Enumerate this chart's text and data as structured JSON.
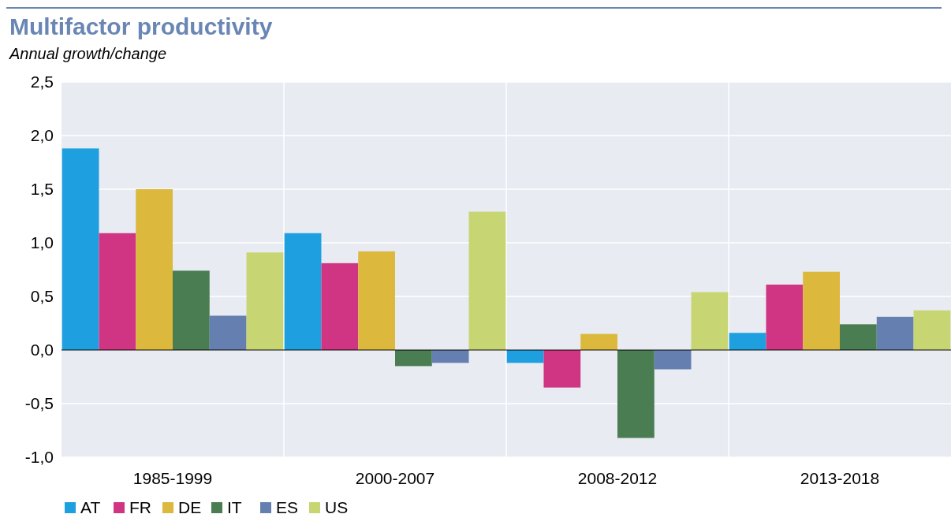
{
  "chart_data": {
    "type": "bar",
    "title": "Multifactor productivity",
    "subtitle": "Annual growth/change",
    "categories": [
      "1985-1999",
      "2000-2007",
      "2008-2012",
      "2013-2018"
    ],
    "series": [
      {
        "name": "AT",
        "color": "#1ea0e0",
        "values": [
          1.88,
          1.09,
          -0.12,
          0.16
        ]
      },
      {
        "name": "FR",
        "color": "#d03584",
        "values": [
          1.09,
          0.81,
          -0.35,
          0.61
        ]
      },
      {
        "name": "DE",
        "color": "#dcb83c",
        "values": [
          1.5,
          0.92,
          0.15,
          0.73
        ]
      },
      {
        "name": "IT",
        "color": "#4a7d52",
        "values": [
          0.74,
          -0.15,
          -0.82,
          0.24
        ]
      },
      {
        "name": "ES",
        "color": "#6580b0",
        "values": [
          0.32,
          -0.12,
          -0.18,
          0.31
        ]
      },
      {
        "name": "US",
        "color": "#c8d573",
        "values": [
          0.91,
          1.29,
          0.54,
          0.37
        ]
      }
    ],
    "ylim": [
      -1,
      2.5
    ],
    "yticks": [
      {
        "value": -1,
        "label": "-1,0"
      },
      {
        "value": -0.5,
        "label": "-0,5"
      },
      {
        "value": 0,
        "label": "0,0"
      },
      {
        "value": 0.5,
        "label": "0,5"
      },
      {
        "value": 1,
        "label": "1,0"
      },
      {
        "value": 1.5,
        "label": "1,5"
      },
      {
        "value": 2,
        "label": "2,0"
      },
      {
        "value": 2.5,
        "label": "2,5"
      }
    ],
    "grid": true,
    "legend": "bottom left"
  }
}
